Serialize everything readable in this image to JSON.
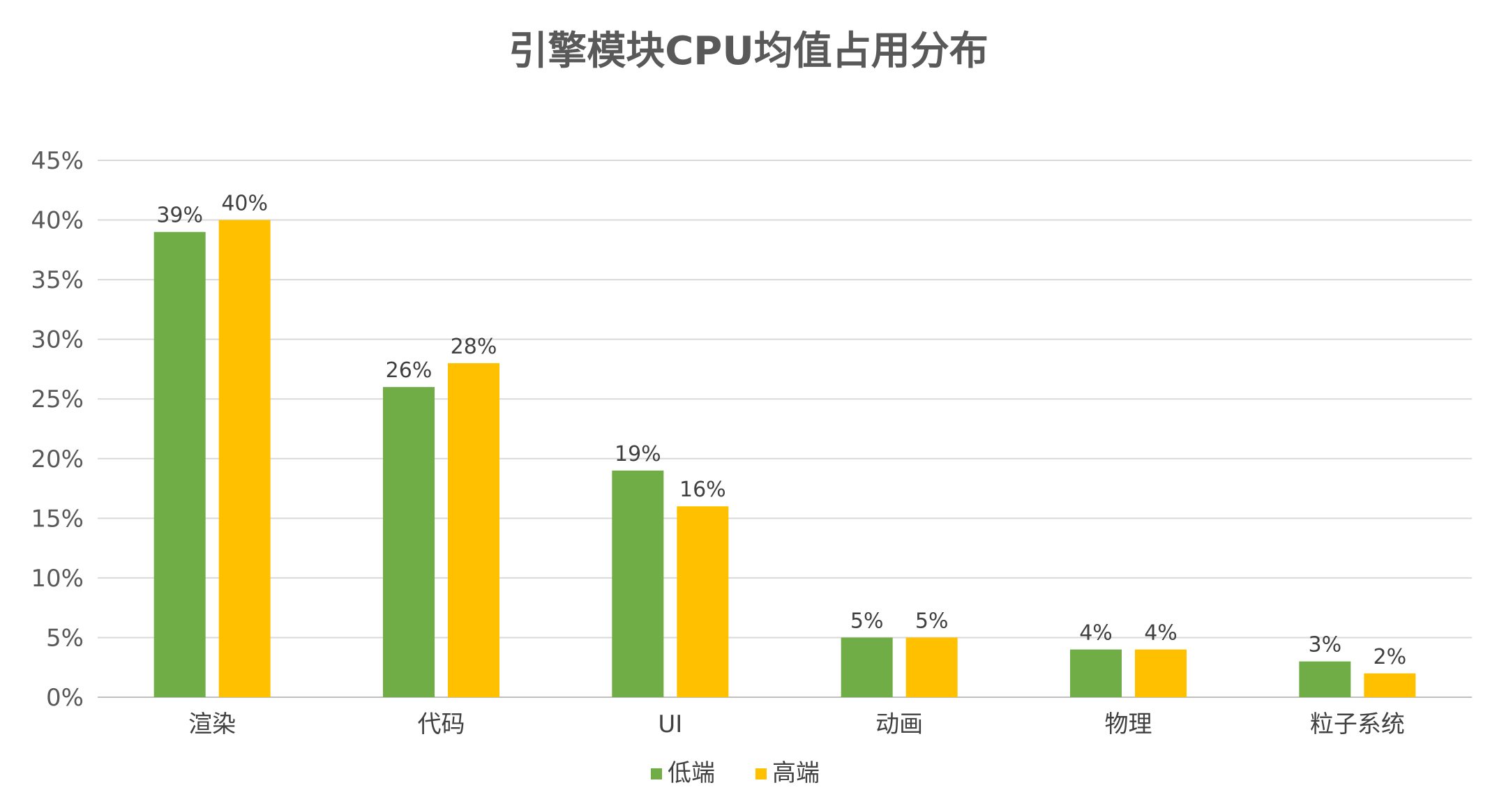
{
  "chart_data": {
    "type": "bar",
    "title": "引擎模块CPU均值占用分布",
    "xlabel": "",
    "ylabel": "",
    "categories": [
      "渲染",
      "代码",
      "UI",
      "动画",
      "物理",
      "粒子系统"
    ],
    "series": [
      {
        "name": "低端",
        "color": "#70AD47",
        "values": [
          39,
          26,
          19,
          5,
          4,
          3
        ],
        "labels": [
          "39%",
          "26%",
          "19%",
          "5%",
          "4%",
          "3%"
        ]
      },
      {
        "name": "高端",
        "color": "#FFC000",
        "values": [
          40,
          28,
          16,
          5,
          4,
          2
        ],
        "labels": [
          "40%",
          "28%",
          "16%",
          "5%",
          "4%",
          "2%"
        ]
      }
    ],
    "ylim": [
      0,
      45
    ],
    "yticks": [
      0,
      5,
      10,
      15,
      20,
      25,
      30,
      35,
      40,
      45
    ],
    "ytick_labels": [
      "0%",
      "5%",
      "10%",
      "15%",
      "20%",
      "25%",
      "30%",
      "35%",
      "40%",
      "45%"
    ],
    "grid": true,
    "legend_position": "bottom"
  }
}
